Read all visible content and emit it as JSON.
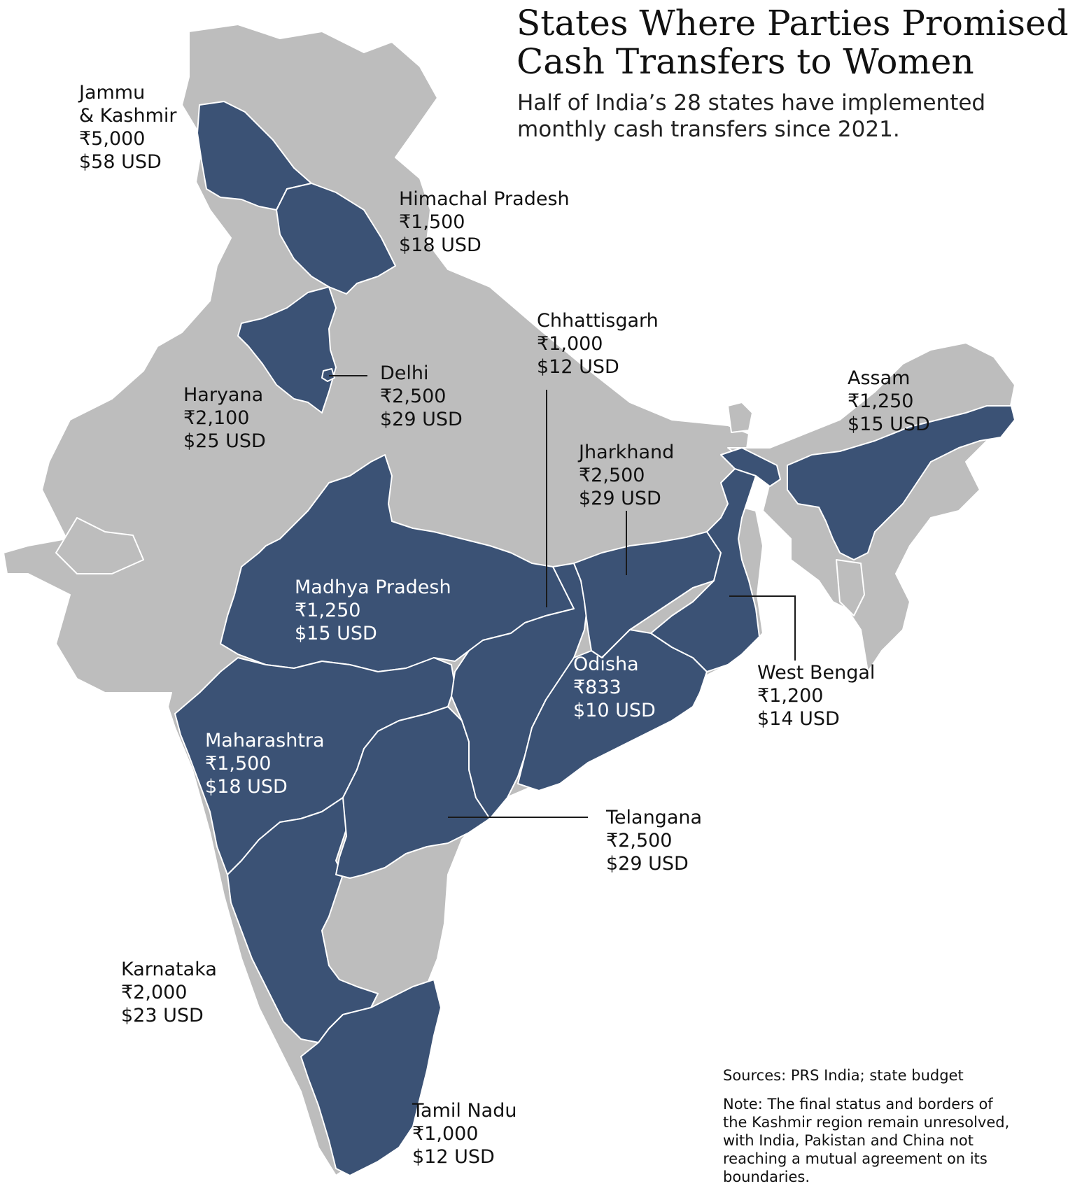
{
  "title": {
    "line1": "States Where Parties Promised",
    "line2": "Cash Transfers to Women"
  },
  "subtitle": {
    "line1": "Half of India’s 28 states have implemented",
    "line2": "monthly cash transfers since 2021."
  },
  "colors": {
    "highlight": "#3b5275",
    "base": "#bdbdbd",
    "border": "#ffffff",
    "leader": "#1a1a1a"
  },
  "states": {
    "jammu_kashmir": {
      "name_line1": "Jammu",
      "name_line2": "&  Kashmir",
      "inr": "₹5,000",
      "usd": "$58 USD"
    },
    "himachal_pradesh": {
      "name": "Himachal Pradesh",
      "inr": "₹1,500",
      "usd": "$18 USD"
    },
    "haryana": {
      "name": "Haryana",
      "inr": "₹2,100",
      "usd": "$25 USD"
    },
    "delhi": {
      "name": "Delhi",
      "inr": "₹2,500",
      "usd": "$29 USD"
    },
    "chhattisgarh": {
      "name": "Chhattisgarh",
      "inr": "₹1,000",
      "usd": "$12 USD"
    },
    "jharkhand": {
      "name": "Jharkhand",
      "inr": "₹2,500",
      "usd": "$29 USD"
    },
    "assam": {
      "name": "Assam",
      "inr": "₹1,250",
      "usd": "$15 USD"
    },
    "madhya_pradesh": {
      "name": "Madhya Pradesh",
      "inr": "₹1,250",
      "usd": "$15 USD"
    },
    "odisha": {
      "name": "Odisha",
      "inr": "₹833",
      "usd": "$10 USD"
    },
    "west_bengal": {
      "name": "West Bengal",
      "inr": "₹1,200",
      "usd": "$14 USD"
    },
    "maharashtra": {
      "name": "Maharashtra",
      "inr": "₹1,500",
      "usd": "$18 USD"
    },
    "telangana": {
      "name": "Telangana",
      "inr": "₹2,500",
      "usd": "$29 USD"
    },
    "karnataka": {
      "name": "Karnataka",
      "inr": "₹2,000",
      "usd": "$23 USD"
    },
    "tamil_nadu": {
      "name": "Tamil Nadu",
      "inr": "₹1,000",
      "usd": "$12 USD"
    }
  },
  "sources": "Sources: PRS India; state budget",
  "note": {
    "line1": "Note: The final status and borders of",
    "line2": "the Kashmir region remain unresolved,",
    "line3": "with India, Pakistan and China not",
    "line4": "reaching a mutual agreement on its",
    "line5": "boundaries."
  }
}
